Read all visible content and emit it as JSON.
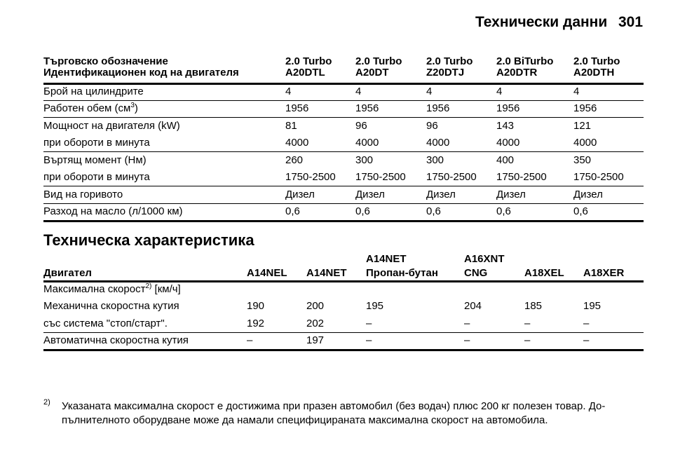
{
  "header": {
    "title": "Технически данни",
    "page": "301"
  },
  "table1": {
    "header_rows": [
      [
        "Търговско обозначение",
        "2.0 Turbo",
        "2.0 Turbo",
        "2.0 Turbo",
        "2.0 BiTurbo",
        "2.0 Turbo"
      ],
      [
        "Идентификационен код на двигателя",
        "A20DTL",
        "A20DT",
        "Z20DTJ",
        "A20DTR",
        "A20DTH"
      ]
    ],
    "groups": [
      [
        [
          "Брой на цилиндрите",
          "4",
          "4",
          "4",
          "4",
          "4"
        ]
      ],
      [
        [
          {
            "text": "Работен обем (см",
            "sup": "3",
            "tail": ")"
          },
          "1956",
          "1956",
          "1956",
          "1956",
          "1956"
        ]
      ],
      [
        [
          "Мощност на двигателя (kW)",
          "81",
          "96",
          "96",
          "143",
          "121"
        ],
        [
          "при обороти в минута",
          "4000",
          "4000",
          "4000",
          "4000",
          "4000"
        ]
      ],
      [
        [
          "Въртящ момент (Нм)",
          "260",
          "300",
          "300",
          "400",
          "350"
        ],
        [
          "при обороти в минута",
          "1750-2500",
          "1750-2500",
          "1750-2500",
          "1750-2500",
          "1750-2500"
        ]
      ],
      [
        [
          "Вид на горивото",
          "Дизел",
          "Дизел",
          "Дизел",
          "Дизел",
          "Дизел"
        ]
      ],
      [
        [
          "Разход на масло (л/1000 км)",
          "0,6",
          "0,6",
          "0,6",
          "0,6",
          "0,6"
        ]
      ]
    ]
  },
  "section_title": "Техническа характеристика",
  "table2": {
    "header": [
      [
        "Двигател"
      ],
      [
        "A14NEL"
      ],
      [
        "A14NET"
      ],
      [
        "A14NET",
        "Пропан-бутан"
      ],
      [
        "A16XNT",
        "CNG"
      ],
      [
        "A18XEL"
      ],
      [
        "A18XER"
      ]
    ],
    "groups": [
      [
        [
          {
            "text": "Максимална скорост",
            "sup": "2)",
            "tail": " [км/ч]"
          }
        ],
        [
          "Механична скоростна кутия",
          "190",
          "200",
          "195",
          "204",
          "185",
          "195"
        ],
        [
          "със система \"стоп/старт\".",
          "192",
          "202",
          "–",
          "–",
          "–",
          "–"
        ]
      ],
      [
        [
          "Автоматична скоростна кутия",
          "–",
          "197",
          "–",
          "–",
          "–",
          "–"
        ]
      ]
    ]
  },
  "footnote": {
    "mark": "2)",
    "lines": [
      "Указаната максимална скорост е достижима при празен автомобил (без водач) плюс 200 кг полезен товар. До-",
      "пълнителното оборудване може да намали специфицираната максимална скорост на автомобила."
    ]
  }
}
